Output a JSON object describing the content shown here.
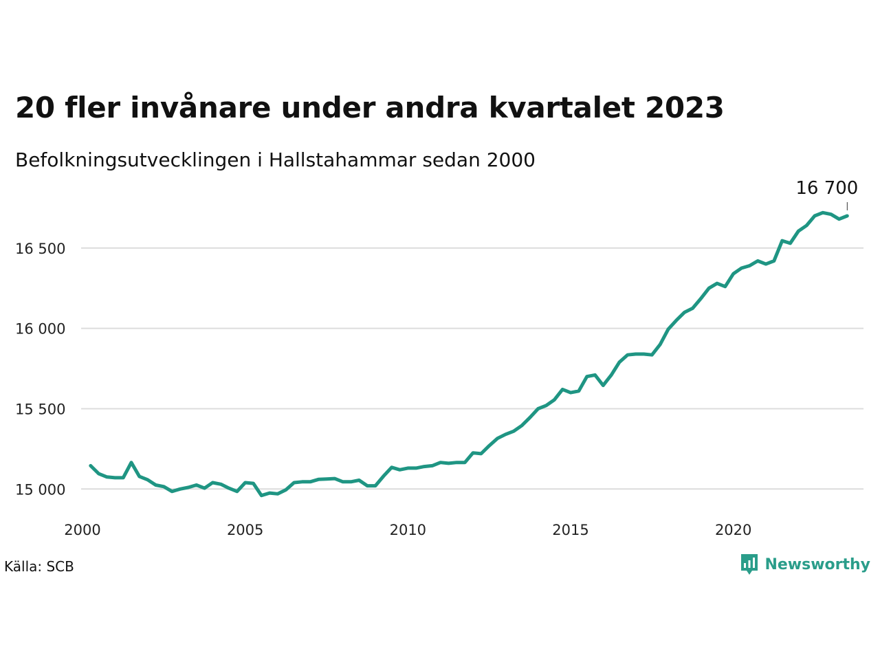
{
  "title": "20 fler invånare under andra kvartalet 2023",
  "subtitle": "Befolkningsutvecklingen i Hallstahammar sedan 2000",
  "source": "Källa: SCB",
  "brand": {
    "name": "Newsworthy",
    "icon": "newsworthy-logo-icon",
    "color": "#2a9d8a"
  },
  "chart_data": {
    "type": "line",
    "series": [
      {
        "color": "#1f9583",
        "x": [
          2000.25,
          2000.5,
          2000.75,
          2001.0,
          2001.25,
          2001.5,
          2001.75,
          2002.0,
          2002.25,
          2002.5,
          2002.75,
          2003.0,
          2003.25,
          2003.5,
          2003.75,
          2004.0,
          2004.25,
          2004.5,
          2004.75,
          2005.0,
          2005.25,
          2005.5,
          2005.75,
          2006.0,
          2006.25,
          2006.5,
          2006.75,
          2007.0,
          2007.25,
          2007.5,
          2007.75,
          2008.0,
          2008.25,
          2008.5,
          2008.75,
          2009.0,
          2009.25,
          2009.5,
          2009.75,
          2010.0,
          2010.25,
          2010.5,
          2010.75,
          2011.0,
          2011.25,
          2011.5,
          2011.75,
          2012.0,
          2012.25,
          2012.5,
          2012.75,
          2013.0,
          2013.25,
          2013.5,
          2013.75,
          2014.0,
          2014.25,
          2014.5,
          2014.75,
          2015.0,
          2015.25,
          2015.5,
          2015.75,
          2016.0,
          2016.25,
          2016.5,
          2016.75,
          2017.0,
          2017.25,
          2017.5,
          2017.75,
          2018.0,
          2018.25,
          2018.5,
          2018.75,
          2019.0,
          2019.25,
          2019.5,
          2019.75,
          2020.0,
          2020.25,
          2020.5,
          2020.75,
          2021.0,
          2021.25,
          2021.5,
          2021.75,
          2022.0,
          2022.25,
          2022.5,
          2022.75,
          2023.0,
          2023.25,
          2023.5
        ],
        "values": [
          15145,
          15095,
          15075,
          15070,
          15070,
          15165,
          15078,
          15058,
          15025,
          15015,
          14985,
          15000,
          15010,
          15025,
          15005,
          15040,
          15030,
          15005,
          14985,
          15040,
          15035,
          14960,
          14975,
          14970,
          14995,
          15040,
          15045,
          15045,
          15060,
          15062,
          15065,
          15045,
          15045,
          15055,
          15020,
          15020,
          15080,
          15135,
          15120,
          15130,
          15130,
          15140,
          15145,
          15165,
          15160,
          15165,
          15165,
          15225,
          15220,
          15270,
          15315,
          15340,
          15360,
          15395,
          15445,
          15500,
          15520,
          15555,
          15620,
          15600,
          15610,
          15700,
          15710,
          15645,
          15710,
          15790,
          15835,
          15840,
          15840,
          15835,
          15900,
          15995,
          16050,
          16100,
          16125,
          16185,
          16250,
          16280,
          16260,
          16340,
          16375,
          16390,
          16420,
          16400,
          16420,
          16545,
          16530,
          16605,
          16640,
          16700,
          16720,
          16710,
          16680,
          16700
        ]
      }
    ],
    "xlim": [
      2000,
      2024
    ],
    "ylim": [
      14920,
      16760
    ],
    "x_ticks": [
      2000,
      2005,
      2010,
      2015,
      2020
    ],
    "y_ticks": [
      15000,
      15500,
      16000,
      16500
    ],
    "y_tick_labels": [
      "15 000",
      "15 500",
      "16 000",
      "16 500"
    ],
    "last_value_label": "16 700",
    "grid": "horizontal",
    "legend": "none"
  }
}
